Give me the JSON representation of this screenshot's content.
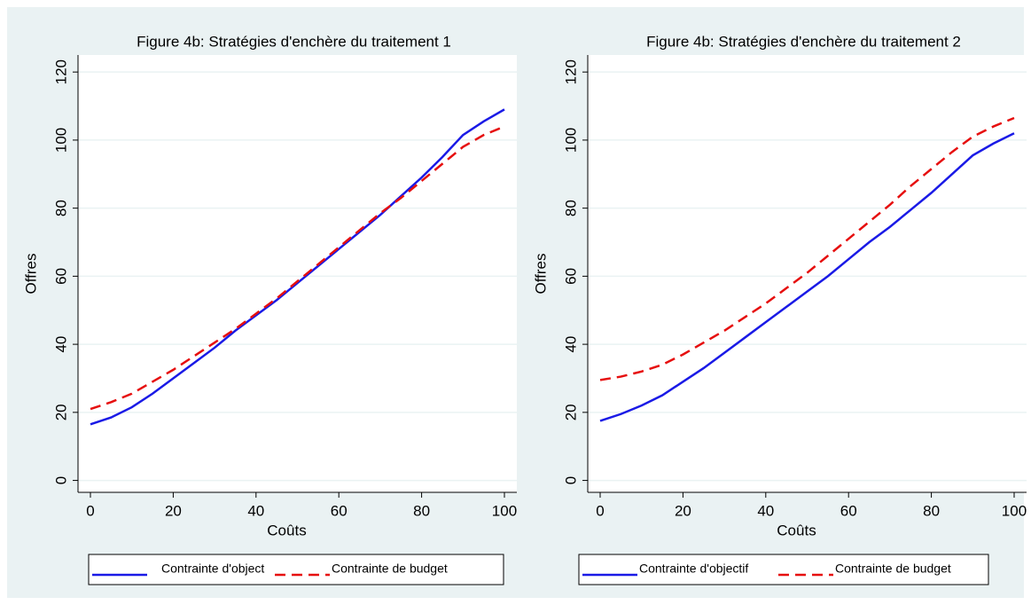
{
  "chart_data": [
    {
      "type": "line",
      "title": "Figure 4b: Stratégies d'enchère du traitement 1",
      "x_label": "Coûts",
      "y_label": "Offres",
      "x": [
        0,
        5,
        10,
        15,
        20,
        25,
        30,
        35,
        40,
        45,
        50,
        55,
        60,
        65,
        70,
        75,
        80,
        85,
        90,
        95,
        100
      ],
      "series": [
        {
          "name": "Contrainte d'object",
          "color": "#1a1ae6",
          "dash": false,
          "values": [
            16.5,
            18.5,
            21.5,
            25.5,
            30,
            34.5,
            39,
            44,
            48.5,
            53,
            58,
            63,
            68,
            73,
            78,
            83.5,
            89,
            95,
            101.5,
            105.5,
            109
          ]
        },
        {
          "name": "Contrainte de budget",
          "color": "#e60f0f",
          "dash": true,
          "values": [
            21,
            23,
            25.5,
            29,
            32.5,
            36.5,
            40.5,
            44.5,
            49,
            53.5,
            58.5,
            63.5,
            68.5,
            73.5,
            78.5,
            83,
            88,
            93,
            98,
            101.5,
            104
          ]
        }
      ],
      "xlim": [
        -3,
        103
      ],
      "xticks": [
        0,
        20,
        40,
        60,
        80,
        100
      ],
      "ylim": [
        -3.5,
        125
      ],
      "yticks": [
        0,
        20,
        40,
        60,
        80,
        100,
        120
      ],
      "grid": true
    },
    {
      "type": "line",
      "title": "Figure 4b: Stratégies d'enchère du traitement 2",
      "x_label": "Coûts",
      "y_label": "Offres",
      "x": [
        0,
        5,
        10,
        15,
        20,
        25,
        30,
        35,
        40,
        45,
        50,
        55,
        60,
        65,
        70,
        75,
        80,
        85,
        90,
        95,
        100
      ],
      "series": [
        {
          "name": "Contrainte d'objectif",
          "color": "#1a1ae6",
          "dash": false,
          "values": [
            17.5,
            19.5,
            22,
            25,
            29,
            33,
            37.5,
            42,
            46.5,
            51,
            55.5,
            60,
            65,
            70,
            74.5,
            79.5,
            84.5,
            90,
            95.5,
            99,
            102
          ]
        },
        {
          "name": "Contrainte de budget",
          "color": "#e60f0f",
          "dash": true,
          "values": [
            29.5,
            30.5,
            32,
            34,
            37,
            40.5,
            44,
            48,
            52,
            56.5,
            61,
            66,
            71,
            76,
            81,
            86.5,
            91.5,
            96.5,
            101,
            104,
            106.5
          ]
        }
      ],
      "xlim": [
        -3,
        103
      ],
      "xticks": [
        0,
        20,
        40,
        60,
        80,
        100
      ],
      "ylim": [
        -3.5,
        125
      ],
      "yticks": [
        0,
        20,
        40,
        60,
        80,
        100,
        120
      ],
      "grid": true
    }
  ]
}
